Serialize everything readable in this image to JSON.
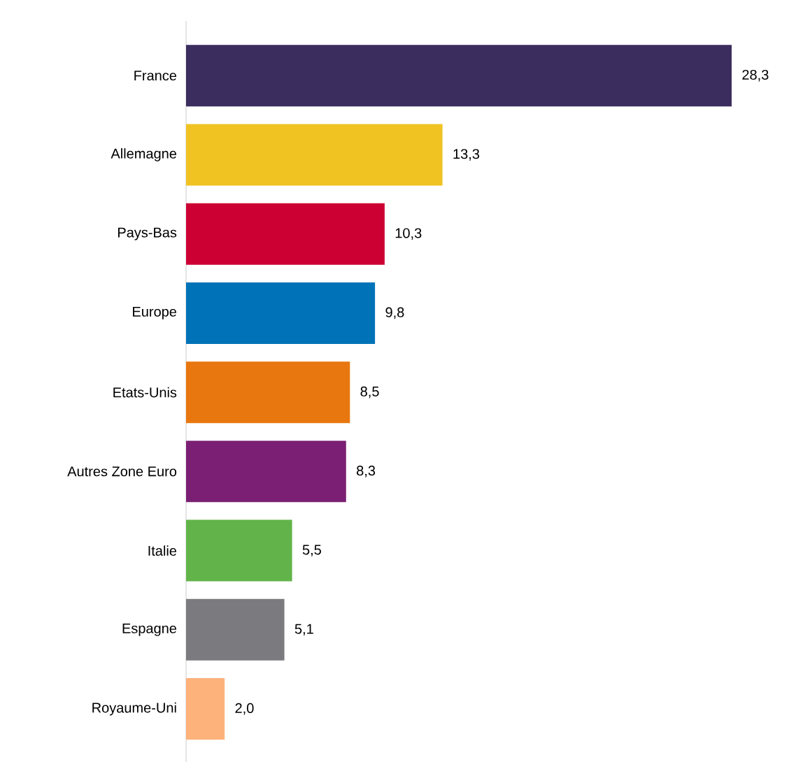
{
  "chart_data": {
    "type": "bar",
    "orientation": "horizontal",
    "categories": [
      "France",
      "Allemagne",
      "Pays-Bas",
      "Europe",
      "Etats-Unis",
      "Autres Zone Euro",
      "Italie",
      "Espagne",
      "Royaume-Uni"
    ],
    "values": [
      28.3,
      13.3,
      10.3,
      9.8,
      8.5,
      8.3,
      5.5,
      5.1,
      2.0
    ],
    "value_labels": [
      "28,3",
      "13,3",
      "10,3",
      "9,8",
      "8,5",
      "8,3",
      "5,5",
      "5,1",
      "2,0"
    ],
    "colors": [
      "#3b2d5e",
      "#f0c322",
      "#cc0033",
      "#0072b8",
      "#e8770f",
      "#7a1f73",
      "#62b44a",
      "#7b7b7f",
      "#fdb27b"
    ],
    "xlim": [
      0,
      28.3
    ]
  }
}
